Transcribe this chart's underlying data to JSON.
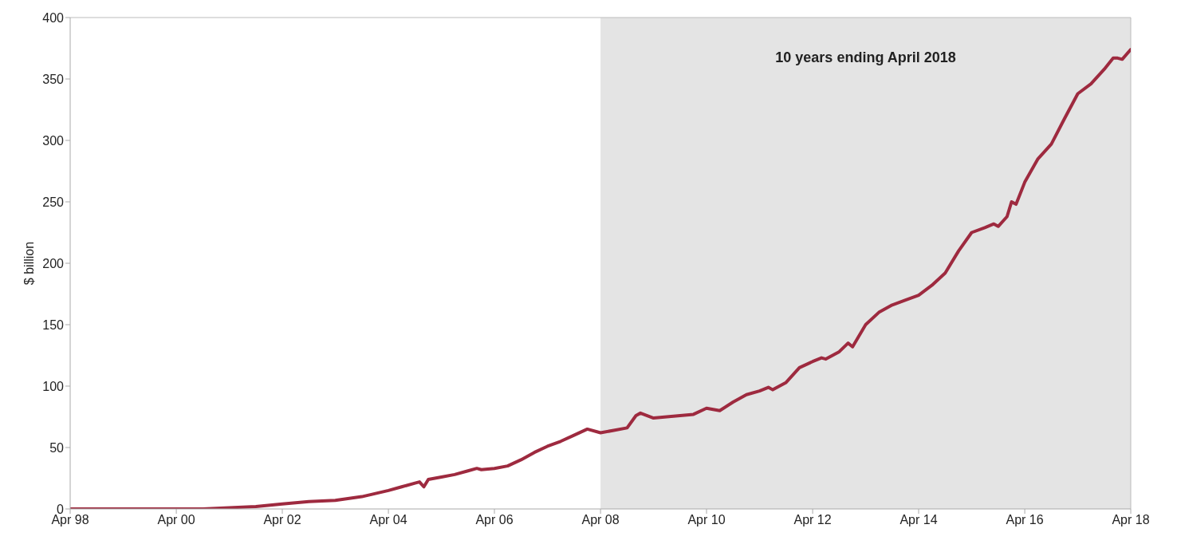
{
  "chart_data": {
    "type": "line",
    "ylabel": "$ billion",
    "x": [
      "1998-04",
      "1999-04",
      "2000-04",
      "2000-10",
      "2001-04",
      "2001-10",
      "2002-04",
      "2002-10",
      "2003-04",
      "2003-10",
      "2004-04",
      "2004-07",
      "2004-10",
      "2004-11",
      "2004-12",
      "2005-01",
      "2005-04",
      "2005-07",
      "2005-10",
      "2005-12",
      "2006-01",
      "2006-04",
      "2006-07",
      "2006-10",
      "2007-01",
      "2007-04",
      "2007-07",
      "2007-10",
      "2008-01",
      "2008-04",
      "2008-07",
      "2008-10",
      "2008-12",
      "2009-01",
      "2009-04",
      "2009-07",
      "2009-10",
      "2010-01",
      "2010-04",
      "2010-07",
      "2010-10",
      "2011-01",
      "2011-04",
      "2011-06",
      "2011-07",
      "2011-10",
      "2012-01",
      "2012-04",
      "2012-06",
      "2012-07",
      "2012-10",
      "2012-12",
      "2013-01",
      "2013-04",
      "2013-07",
      "2013-10",
      "2014-01",
      "2014-04",
      "2014-07",
      "2014-10",
      "2015-01",
      "2015-04",
      "2015-07",
      "2015-09",
      "2015-10",
      "2015-12",
      "2016-01",
      "2016-02",
      "2016-04",
      "2016-07",
      "2016-10",
      "2017-01",
      "2017-04",
      "2017-07",
      "2017-10",
      "2017-12",
      "2018-01",
      "2018-02",
      "2018-04"
    ],
    "series": [
      {
        "color": "#9e2a3f",
        "values": [
          0,
          0,
          0,
          0,
          1,
          2,
          4,
          6,
          7,
          10,
          15,
          18,
          21,
          22,
          18,
          24,
          26,
          28,
          31,
          33,
          32,
          33,
          35,
          40,
          46,
          51,
          55,
          60,
          65,
          62,
          64,
          66,
          76,
          78,
          74,
          75,
          76,
          77,
          82,
          80,
          87,
          93,
          96,
          99,
          97,
          103,
          115,
          120,
          123,
          122,
          128,
          135,
          132,
          150,
          160,
          166,
          170,
          174,
          182,
          192,
          210,
          225,
          229,
          232,
          230,
          238,
          250,
          248,
          266,
          285,
          297,
          318,
          338,
          346,
          358,
          367,
          367,
          366,
          374
        ]
      }
    ],
    "xlim": [
      "1998-04",
      "2018-04"
    ],
    "xticks": [
      {
        "value": "1998-04",
        "label": "Apr 98"
      },
      {
        "value": "2000-04",
        "label": "Apr 00"
      },
      {
        "value": "2002-04",
        "label": "Apr 02"
      },
      {
        "value": "2004-04",
        "label": "Apr 04"
      },
      {
        "value": "2006-04",
        "label": "Apr 06"
      },
      {
        "value": "2008-04",
        "label": "Apr 08"
      },
      {
        "value": "2010-04",
        "label": "Apr 10"
      },
      {
        "value": "2012-04",
        "label": "Apr 12"
      },
      {
        "value": "2014-04",
        "label": "Apr 14"
      },
      {
        "value": "2016-04",
        "label": "Apr 16"
      },
      {
        "value": "2018-04",
        "label": "Apr 18"
      }
    ],
    "ylim": [
      0,
      400
    ],
    "yticks": [
      0,
      50,
      100,
      150,
      200,
      250,
      300,
      350,
      400
    ],
    "bands": [
      {
        "axis": "x",
        "from": "2008-04",
        "to": "2018-04",
        "label": "10 years ending April 2018",
        "color": "#e4e4e4"
      }
    ],
    "grid": false,
    "marker": "none",
    "line_style": "solid"
  }
}
